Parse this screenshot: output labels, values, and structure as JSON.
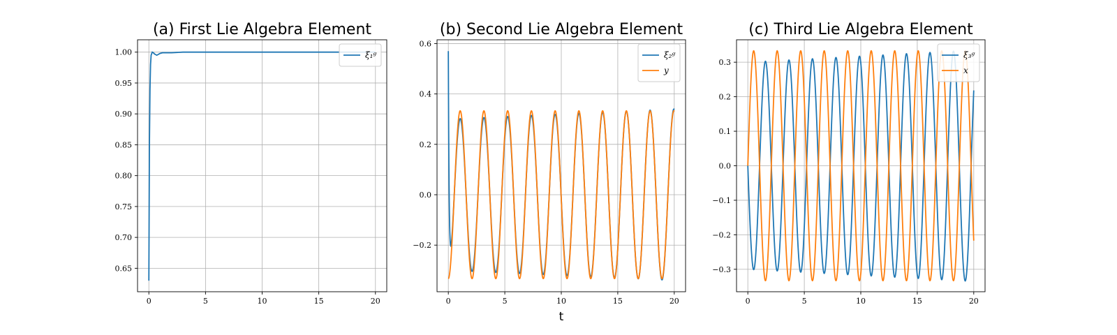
{
  "chart_data": [
    {
      "type": "line",
      "title": "(a) First Lie Algebra Element",
      "xlabel": "",
      "ylabel": "",
      "xlim": [
        -1,
        21
      ],
      "ylim": [
        0.612,
        1.02
      ],
      "xticks": [
        0,
        5,
        10,
        15,
        20
      ],
      "xtick_labels": [
        "0",
        "5",
        "10",
        "15",
        "20"
      ],
      "yticks": [
        0.65,
        0.7,
        0.75,
        0.8,
        0.85,
        0.9,
        0.95,
        1.0
      ],
      "ytick_labels": [
        "0.65",
        "0.70",
        "0.75",
        "0.80",
        "0.85",
        "0.90",
        "0.95",
        "1.00"
      ],
      "grid": true,
      "legend_position": "top-right",
      "series": [
        {
          "name": "ξ₁ᵍ",
          "color": "#1f77b4",
          "x": [
            0,
            0.05,
            0.1,
            0.15,
            0.2,
            0.3,
            0.4,
            0.5,
            0.6,
            0.7,
            0.8,
            0.9,
            1.0,
            1.2,
            1.5,
            2,
            3,
            4,
            5,
            10,
            15,
            20
          ],
          "y": [
            0.63,
            0.85,
            0.94,
            0.98,
            0.995,
            1.0,
            0.999,
            0.997,
            0.996,
            0.995,
            0.996,
            0.997,
            0.998,
            0.999,
            0.999,
            0.999,
            1.0,
            1.0,
            1.0,
            1.0,
            1.0,
            1.0
          ]
        }
      ]
    },
    {
      "type": "line",
      "title": "(b) Second Lie Algebra Element",
      "xlabel": "t",
      "ylabel": "",
      "xlim": [
        -1,
        21
      ],
      "ylim": [
        -0.385,
        0.615
      ],
      "xticks": [
        0,
        5,
        10,
        15,
        20
      ],
      "xtick_labels": [
        "0",
        "5",
        "10",
        "15",
        "20"
      ],
      "yticks": [
        -0.2,
        0.0,
        0.2,
        0.4,
        0.6
      ],
      "ytick_labels": [
        "−0.2",
        "0.0",
        "0.2",
        "0.4",
        "0.6"
      ],
      "grid": true,
      "legend_position": "top-right",
      "series": [
        {
          "name": "ξ₂ᵍ",
          "color": "#1f77b4",
          "model": "damped_from_start",
          "start": 0.57,
          "omega": 2.99,
          "phase": -1.5708,
          "amplitude_start": 0.3,
          "amplitude_end": 0.34
        },
        {
          "name": "y",
          "color": "#ff7f0e",
          "model": "sine",
          "amplitude": 0.333,
          "omega": 2.99,
          "phase": -1.5708
        }
      ]
    },
    {
      "type": "line",
      "title": "(c) Third Lie Algebra Element",
      "xlabel": "",
      "ylabel": "",
      "xlim": [
        -1,
        21
      ],
      "ylim": [
        -0.365,
        0.365
      ],
      "xticks": [
        0,
        5,
        10,
        15,
        20
      ],
      "xtick_labels": [
        "0",
        "5",
        "10",
        "15",
        "20"
      ],
      "yticks": [
        -0.3,
        -0.2,
        -0.1,
        0.0,
        0.1,
        0.2,
        0.3
      ],
      "ytick_labels": [
        "−0.3",
        "−0.2",
        "−0.1",
        "0.0",
        "0.1",
        "0.2",
        "0.3"
      ],
      "grid": true,
      "legend_position": "top-right",
      "series": [
        {
          "name": "ξ₃ᵍ",
          "color": "#1f77b4",
          "model": "sine",
          "amplitude_start": 0.3,
          "amplitude_end": 0.335,
          "omega": 3.02,
          "phase": 3.1416
        },
        {
          "name": "x",
          "color": "#ff7f0e",
          "model": "sine",
          "amplitude": 0.333,
          "omega": 3.02,
          "phase": 0.0
        }
      ]
    }
  ]
}
